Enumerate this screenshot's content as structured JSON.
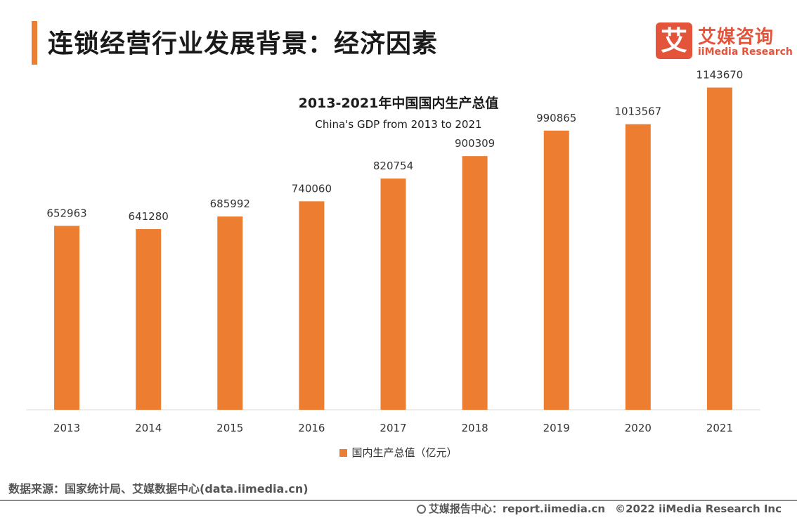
{
  "page": {
    "title": "连锁经营行业发展背景：经济因素"
  },
  "logo": {
    "mark": "艾",
    "name_cn": "艾媒咨询",
    "name_en": "iiMedia Research"
  },
  "chart_data": {
    "type": "bar",
    "title": "2013-2021年中国国内生产总值",
    "subtitle": "China's GDP from 2013 to 2021",
    "categories": [
      "2013",
      "2014",
      "2015",
      "2016",
      "2017",
      "2018",
      "2019",
      "2020",
      "2021"
    ],
    "series": [
      {
        "name": "国内生产总值（亿元）",
        "values": [
          652963,
          641280,
          685992,
          740060,
          820754,
          900309,
          990865,
          1013567,
          1143670
        ]
      }
    ],
    "ylim": [
      0,
      1200000
    ],
    "xlabel": "",
    "ylabel": "",
    "grid": false,
    "legend_position": "bottom",
    "color": "#ED7D31"
  },
  "footer": {
    "source": "数据来源：国家统计局、艾媒数据中心(data.iimedia.cn)",
    "report_center": "艾媒报告中心：report.iimedia.cn",
    "copyright": "©2022 iiMedia Research Inc"
  }
}
